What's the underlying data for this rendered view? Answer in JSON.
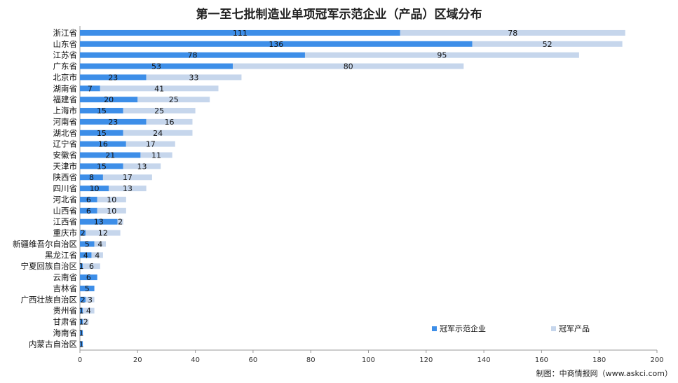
{
  "chart_data": {
    "type": "bar",
    "orientation": "horizontal",
    "stacked": true,
    "title": "第一至七批制造业单项冠军示范企业（产品）区域分布",
    "source": "制图：中商情报网（www.askci.com）",
    "categories": [
      "浙江省",
      "山东省",
      "江苏省",
      "广东省",
      "北京市",
      "湖南省",
      "福建省",
      "上海市",
      "河南省",
      "湖北省",
      "辽宁省",
      "安徽省",
      "天津市",
      "陕西省",
      "四川省",
      "河北省",
      "山西省",
      "江西省",
      "重庆市",
      "新疆维吾尔自治区",
      "黑龙江省",
      "宁夏回族自治区",
      "云南省",
      "吉林省",
      "广西壮族自治区",
      "贵州省",
      "甘肃省",
      "海南省",
      "内蒙古自治区"
    ],
    "series": [
      {
        "name": "冠军示范企业",
        "color": "#3d8ee8",
        "values": [
          111,
          136,
          78,
          53,
          23,
          7,
          20,
          15,
          23,
          15,
          16,
          21,
          15,
          8,
          10,
          6,
          6,
          13,
          2,
          5,
          4,
          1,
          6,
          5,
          2,
          1,
          1,
          1,
          1
        ]
      },
      {
        "name": "冠军产品",
        "color": "#c6d6ec",
        "values": [
          78,
          52,
          95,
          80,
          33,
          41,
          25,
          25,
          16,
          24,
          17,
          11,
          13,
          17,
          13,
          10,
          10,
          2,
          12,
          4,
          4,
          6,
          null,
          null,
          3,
          4,
          2,
          null,
          null
        ]
      }
    ],
    "xlim": [
      0,
      200
    ],
    "xticks": [
      0,
      20,
      40,
      60,
      80,
      100,
      120,
      140,
      160,
      180,
      200
    ],
    "legend": "bottom-right",
    "grid": false
  }
}
